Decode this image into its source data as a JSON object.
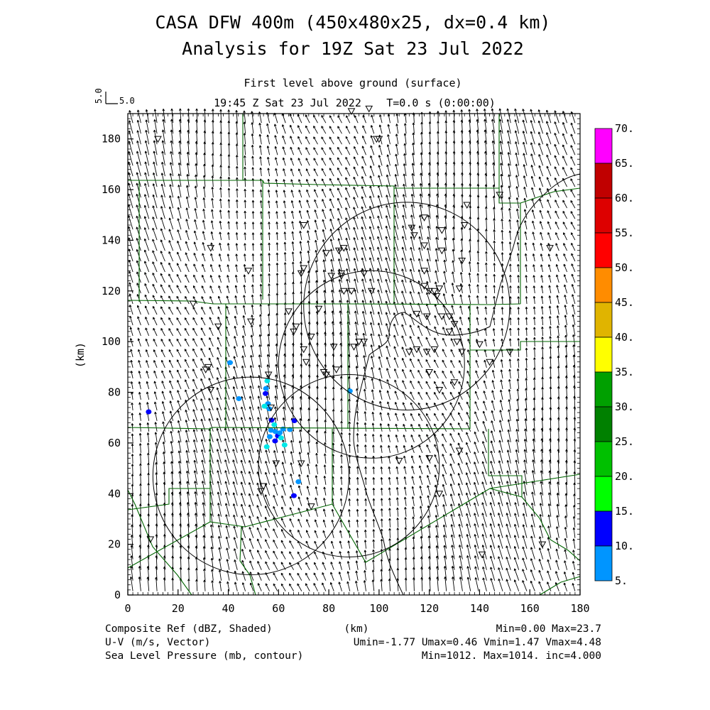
{
  "title_line1": "CASA DFW 400m (450x480x25, dx=0.4 km)",
  "title_line2": "Analysis for 19Z Sat 23 Jul 2022",
  "level_label": "First level above ground (surface)",
  "time_label": "19:45 Z Sat 23 Jul 2022",
  "time_offset_label": "T=0.0 s (0:00:00)",
  "vector_reference": {
    "label": "5.0",
    "vertical_label": "5.0"
  },
  "map": {
    "x_axis": {
      "label": "(km)",
      "ticks": [
        "0",
        "20",
        "40",
        "60",
        "80",
        "100",
        "120",
        "140",
        "160",
        "180"
      ],
      "range": [
        0,
        180
      ]
    },
    "y_axis": {
      "label": "(km)",
      "ticks": [
        "0",
        "20",
        "40",
        "60",
        "80",
        "100",
        "120",
        "140",
        "160",
        "180"
      ],
      "range": [
        0,
        190
      ]
    },
    "radar_range_circles_km": [
      {
        "cx": 49,
        "cy": 47,
        "r": 39
      },
      {
        "cx": 88,
        "cy": 51,
        "r": 36
      },
      {
        "cx": 97,
        "cy": 91,
        "r": 37
      },
      {
        "cx": 111,
        "cy": 114,
        "r": 41
      }
    ],
    "reflectivity_echoes_km": [
      [
        8.3,
        72.3
      ],
      [
        40.7,
        91.7
      ],
      [
        55.0,
        81.5
      ],
      [
        55.5,
        84.5
      ],
      [
        54.8,
        79.5
      ],
      [
        55.8,
        75.5
      ],
      [
        54.4,
        74.5
      ],
      [
        56.3,
        73.5
      ],
      [
        57.2,
        69
      ],
      [
        58.3,
        67.2
      ],
      [
        57.0,
        65
      ],
      [
        58.7,
        64.5
      ],
      [
        59.7,
        62.8
      ],
      [
        60.5,
        64
      ],
      [
        61.8,
        65.5
      ],
      [
        61.0,
        62
      ],
      [
        58.6,
        60.8
      ],
      [
        56.5,
        62.5
      ],
      [
        55.3,
        58.5
      ],
      [
        64.5,
        65.3
      ],
      [
        66.3,
        68.8
      ],
      [
        62.4,
        59.2
      ],
      [
        88.4,
        80.5
      ],
      [
        67.9,
        44.7
      ],
      [
        66.1,
        39.2
      ],
      [
        44.2,
        77.5
      ]
    ],
    "pressure_contour_label": ""
  },
  "colorbar": {
    "labels": [
      "70.",
      "65.",
      "60.",
      "55.",
      "50.",
      "45.",
      "40.",
      "35.",
      "30.",
      "25.",
      "20.",
      "15.",
      "10.",
      "5."
    ],
    "colors": [
      "#ff00ff",
      "#c00000",
      "#dd0000",
      "#ff0000",
      "#ff8c00",
      "#e0b400",
      "#ffff00",
      "#00a000",
      "#008000",
      "#00c000",
      "#00ff00",
      "#0000ff",
      "#0095ff",
      "#00e8e8"
    ]
  },
  "footer": {
    "left": [
      "Composite Ref (dBZ, Shaded)",
      "U-V (m/s, Vector)",
      "Sea Level Pressure (mb, contour)"
    ],
    "center": "(km)",
    "right": [
      "Min=0.00 Max=23.7",
      "Umin=-1.77 Umax=0.46 Vmin=1.47 Vmax=4.48",
      "Min=1012. Max=1014. inc=4.000"
    ]
  }
}
